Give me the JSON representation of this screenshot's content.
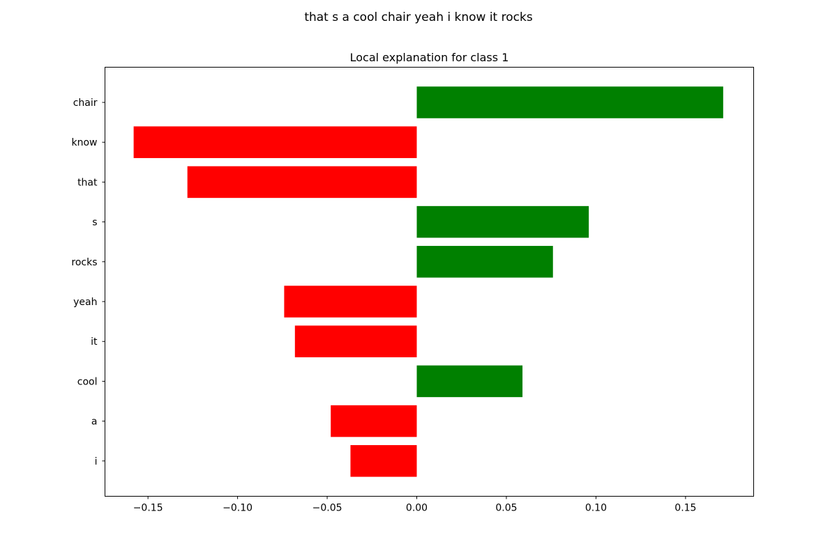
{
  "figure": {
    "suptitle": "that s a cool chair yeah i know it rocks"
  },
  "chart_data": {
    "type": "bar",
    "orientation": "horizontal",
    "title": "Local explanation for class 1",
    "xlabel": "",
    "ylabel": "",
    "categories": [
      "chair",
      "know",
      "that",
      "s",
      "rocks",
      "yeah",
      "it",
      "cool",
      "a",
      "i"
    ],
    "values": [
      0.171,
      -0.158,
      -0.128,
      0.096,
      0.076,
      -0.074,
      -0.068,
      0.059,
      -0.048,
      -0.037
    ],
    "xlim": [
      -0.174,
      0.188
    ],
    "xticks": [
      -0.15,
      -0.1,
      -0.05,
      0.0,
      0.05,
      0.1,
      0.15
    ],
    "xtick_labels": [
      "−0.15",
      "−0.10",
      "−0.05",
      "0.00",
      "0.05",
      "0.10",
      "0.15"
    ],
    "grid": false,
    "legend": "none",
    "colors": {
      "positive": "#008000",
      "negative": "#ff0000"
    }
  }
}
